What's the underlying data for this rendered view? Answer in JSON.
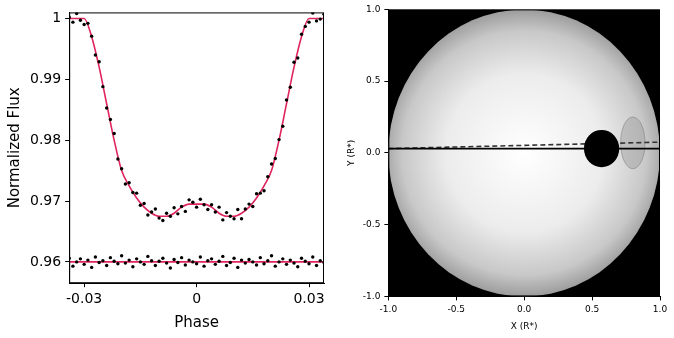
{
  "chart_data": [
    {
      "type": "scatter",
      "x_label": "Phase",
      "y_label": "Normalized Flux",
      "xlim": [
        -0.034,
        0.034
      ],
      "xticks": [
        -0.03,
        0,
        0.03
      ],
      "ylim": [
        0.9565,
        1.001
      ],
      "yticks": [
        0.96,
        0.97,
        0.98,
        0.99,
        1
      ],
      "grid": false,
      "series": [
        {
          "type": "scatter",
          "color": "#000000",
          "marker": "dot",
          "x": [
            -0.034,
            -0.033,
            -0.032,
            -0.031,
            -0.03,
            -0.029,
            -0.028,
            -0.027,
            -0.026,
            -0.025,
            -0.024,
            -0.023,
            -0.022,
            -0.021,
            -0.02,
            -0.019,
            -0.018,
            -0.017,
            -0.016,
            -0.015,
            -0.014,
            -0.013,
            -0.012,
            -0.011,
            -0.01,
            -0.009,
            -0.008,
            -0.007,
            -0.006,
            -0.005,
            -0.004,
            -0.003,
            -0.002,
            -0.001,
            0,
            0.001,
            0.002,
            0.003,
            0.004,
            0.005,
            0.006,
            0.007,
            0.008,
            0.009,
            0.01,
            0.011,
            0.012,
            0.013,
            0.014,
            0.015,
            0.016,
            0.017,
            0.018,
            0.019,
            0.02,
            0.021,
            0.022,
            0.023,
            0.024,
            0.025,
            0.026,
            0.027,
            0.028,
            0.029,
            0.03,
            0.031,
            0.032,
            0.033,
            0.034
          ],
          "values": [
            1.0002,
            0.9994,
            1.0008,
            0.9997,
            0.999,
            0.9992,
            0.9971,
            0.994,
            0.9929,
            0.9888,
            0.9853,
            0.9834,
            0.9811,
            0.9769,
            0.9753,
            0.9728,
            0.973,
            0.9714,
            0.9713,
            0.9693,
            0.9696,
            0.9677,
            0.9682,
            0.9687,
            0.9672,
            0.9668,
            0.968,
            0.9675,
            0.9689,
            0.9679,
            0.9691,
            0.9683,
            0.9702,
            0.9698,
            0.969,
            0.9703,
            0.9694,
            0.9686,
            0.9694,
            0.9682,
            0.969,
            0.9669,
            0.9681,
            0.9675,
            0.9671,
            0.9686,
            0.9671,
            0.9687,
            0.9695,
            0.9691,
            0.9712,
            0.9713,
            0.9717,
            0.974,
            0.9761,
            0.977,
            0.9801,
            0.9823,
            0.9866,
            0.9887,
            0.9928,
            0.9935,
            0.9974,
            0.9987,
            0.9994,
            1.0009,
            0.9996,
            0.9999,
            1.0007
          ]
        },
        {
          "type": "line",
          "color": "#e0245e",
          "line_style": "solid",
          "x": [
            -0.034,
            -0.03,
            -0.028,
            -0.026,
            -0.024,
            -0.022,
            -0.02,
            -0.018,
            -0.016,
            -0.014,
            -0.012,
            -0.01,
            -0.008,
            -0.006,
            -0.004,
            -0.002,
            0,
            0.002,
            0.004,
            0.006,
            0.008,
            0.01,
            0.012,
            0.014,
            0.016,
            0.018,
            0.02,
            0.022,
            0.024,
            0.026,
            0.028,
            0.03,
            0.034
          ],
          "values": [
            1.0,
            1.0,
            0.997,
            0.992,
            0.986,
            0.98,
            0.975,
            0.9725,
            0.9705,
            0.969,
            0.968,
            0.9675,
            0.9675,
            0.968,
            0.969,
            0.9695,
            0.9695,
            0.9695,
            0.969,
            0.968,
            0.9675,
            0.9675,
            0.968,
            0.969,
            0.9705,
            0.9725,
            0.975,
            0.98,
            0.986,
            0.992,
            0.997,
            1.0,
            1.0
          ]
        },
        {
          "type": "scatter",
          "color": "#000000",
          "marker": "dot",
          "x": [
            -0.034,
            -0.033,
            -0.032,
            -0.031,
            -0.03,
            -0.029,
            -0.028,
            -0.027,
            -0.026,
            -0.025,
            -0.024,
            -0.023,
            -0.022,
            -0.021,
            -0.02,
            -0.019,
            -0.018,
            -0.017,
            -0.016,
            -0.015,
            -0.014,
            -0.013,
            -0.012,
            -0.011,
            -0.01,
            -0.009,
            -0.008,
            -0.007,
            -0.006,
            -0.005,
            -0.004,
            -0.003,
            -0.002,
            -0.001,
            0,
            0.001,
            0.002,
            0.003,
            0.004,
            0.005,
            0.006,
            0.007,
            0.008,
            0.009,
            0.01,
            0.011,
            0.012,
            0.013,
            0.014,
            0.015,
            0.016,
            0.017,
            0.018,
            0.019,
            0.02,
            0.021,
            0.022,
            0.023,
            0.024,
            0.025,
            0.026,
            0.027,
            0.028,
            0.029,
            0.03,
            0.031,
            0.032,
            0.033,
            0.034
          ],
          "values": [
            0.9606,
            0.9593,
            0.96,
            0.9605,
            0.9596,
            0.9603,
            0.9591,
            0.9608,
            0.9599,
            0.9602,
            0.9594,
            0.9607,
            0.9601,
            0.9597,
            0.961,
            0.9598,
            0.9603,
            0.9592,
            0.9605,
            0.96,
            0.9596,
            0.9609,
            0.9602,
            0.9594,
            0.9601,
            0.9606,
            0.9598,
            0.959,
            0.9604,
            0.9599,
            0.9607,
            0.9595,
            0.9603,
            0.96,
            0.9597,
            0.9608,
            0.9593,
            0.9602,
            0.9605,
            0.9596,
            0.9601,
            0.9609,
            0.9594,
            0.9599,
            0.9606,
            0.9591,
            0.9603,
            0.9598,
            0.9604,
            0.96,
            0.9595,
            0.9607,
            0.9597,
            0.9602,
            0.961,
            0.9593,
            0.96,
            0.9605,
            0.9596,
            0.9603,
            0.9598,
            0.9592,
            0.9606,
            0.9601,
            0.9597,
            0.9608,
            0.9594,
            0.9602,
            0.9599
          ]
        },
        {
          "type": "line",
          "color": "#e0245e",
          "line_style": "solid",
          "x": [
            -0.034,
            0.034
          ],
          "values": [
            0.96,
            0.96
          ]
        }
      ]
    },
    {
      "type": "transit_map",
      "x_label": "X (R*)",
      "y_label": "Y (R*)",
      "xlim": [
        -1,
        1
      ],
      "xticks": [
        {
          "value": -1,
          "label": "-1.0"
        },
        {
          "value": -0.5,
          "label": "-0.5"
        },
        {
          "value": 0,
          "label": "0.0"
        },
        {
          "value": 0.5,
          "label": "0.5"
        },
        {
          "value": 1,
          "label": "1.0"
        }
      ],
      "ylim": [
        -1,
        1
      ],
      "yticks": [
        {
          "value": -1,
          "label": "-1.0"
        },
        {
          "value": -0.5,
          "label": "-0.5"
        },
        {
          "value": 0,
          "label": "0.0"
        },
        {
          "value": 0.5,
          "label": "0.5"
        },
        {
          "value": 1,
          "label": "1.0"
        }
      ],
      "grid": false,
      "star": {
        "x": 0,
        "y": 0,
        "radius": 1
      },
      "planet": {
        "x": 0.57,
        "y": 0.03,
        "radius": 0.13
      },
      "spot": {
        "x": 0.8,
        "y": 0.07,
        "width": 0.18,
        "height": 0.36
      },
      "series": [
        {
          "type": "line",
          "color": "#000000",
          "line_style": "solid",
          "x": [
            -1,
            1
          ],
          "values": [
            0.03,
            0.03
          ]
        },
        {
          "type": "line",
          "color": "#333333",
          "line_style": "dashed",
          "x": [
            -1,
            1
          ],
          "values": [
            0.03,
            0.075
          ]
        }
      ]
    }
  ]
}
